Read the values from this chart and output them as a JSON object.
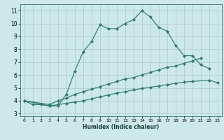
{
  "xlabel": "Humidex (Indice chaleur)",
  "bg_color": "#cce8e8",
  "grid_color": "#aacccc",
  "line_color": "#2d7a6e",
  "xlim": [
    -0.5,
    23.5
  ],
  "ylim": [
    2.8,
    11.5
  ],
  "xticks": [
    0,
    1,
    2,
    3,
    4,
    5,
    6,
    7,
    8,
    9,
    10,
    11,
    12,
    13,
    14,
    15,
    16,
    17,
    18,
    19,
    20,
    21,
    22,
    23
  ],
  "yticks": [
    3,
    4,
    5,
    6,
    7,
    8,
    9,
    10,
    11
  ],
  "curve1_x": [
    0,
    1,
    2,
    3,
    4,
    5,
    6,
    7,
    8,
    9,
    10,
    11,
    12,
    13,
    14,
    15,
    16,
    17,
    18,
    19,
    20,
    21,
    22
  ],
  "curve1_y": [
    4.0,
    3.7,
    3.7,
    3.6,
    3.6,
    4.5,
    6.3,
    7.8,
    8.6,
    9.9,
    9.6,
    9.6,
    10.0,
    10.3,
    11.0,
    10.5,
    9.7,
    9.4,
    8.3,
    7.5,
    7.5,
    6.8,
    6.5
  ],
  "curve2_x": [
    0,
    3,
    4,
    5,
    6,
    7,
    8,
    9,
    10,
    11,
    12,
    13,
    14,
    15,
    16,
    17,
    18,
    19,
    20,
    21
  ],
  "curve2_y": [
    4.0,
    3.7,
    4.0,
    4.2,
    4.5,
    4.7,
    4.9,
    5.1,
    5.3,
    5.5,
    5.7,
    5.8,
    6.0,
    6.2,
    6.4,
    6.6,
    6.7,
    6.9,
    7.1,
    7.3
  ],
  "curve3_x": [
    0,
    3,
    4,
    5,
    6,
    7,
    8,
    9,
    10,
    11,
    12,
    13,
    14,
    15,
    16,
    17,
    18,
    19,
    20,
    22,
    23
  ],
  "curve3_y": [
    4.0,
    3.6,
    3.7,
    3.8,
    3.9,
    4.0,
    4.15,
    4.3,
    4.45,
    4.6,
    4.7,
    4.85,
    4.95,
    5.05,
    5.15,
    5.25,
    5.35,
    5.45,
    5.5,
    5.6,
    5.4
  ]
}
